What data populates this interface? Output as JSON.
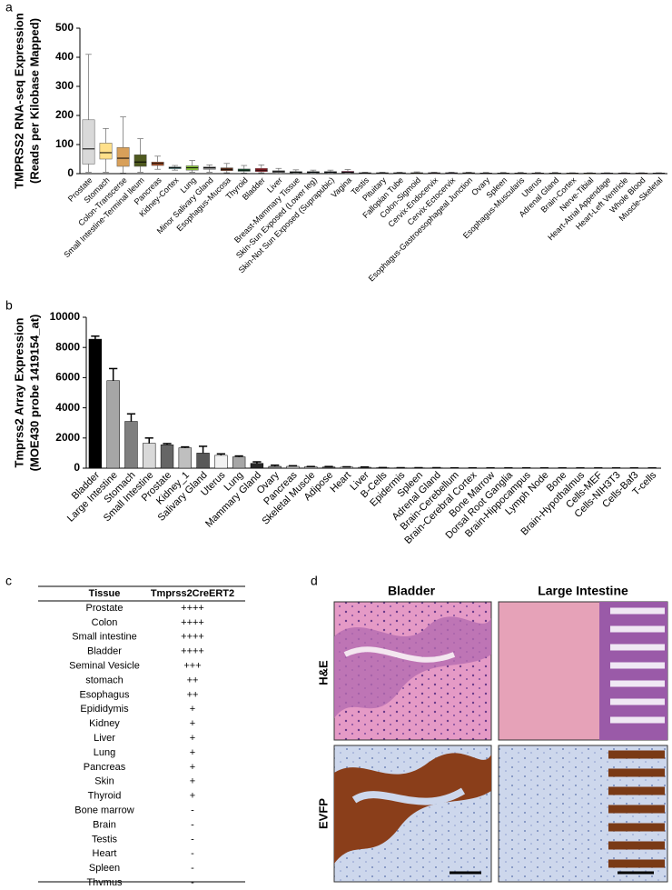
{
  "panels": [
    "a",
    "b",
    "c",
    "d"
  ],
  "chart_data": [
    {
      "type": "box",
      "y_label": [
        "TMPRSS2 RNA-seq Expression",
        "(Reads per Kilobase Mapped)"
      ],
      "categories": [
        "Prostate",
        "Stomach",
        "Colon-Transcerse",
        "Small Intestine-Terminal Ileum",
        "Pancreas",
        "Kidney-Cortex",
        "Lung",
        "Minor Salivary Gland",
        "Esophagus-Mucosa",
        "Thyroid",
        "Bladder",
        "Liver",
        "Breast-Mammary Tissue",
        "Skin-Sun Exposed (Lower leg)",
        "Skin-Not Sun Exposed (Suprapubic)",
        "Vagina",
        "Testis",
        "Pituitary",
        "Fallopian Tube",
        "Colon-Sigmoid",
        "Cervix-Endocervix",
        "Cervix-Ectocervix",
        "Esophagus-Gastroesophageal Junction",
        "Ovary",
        "Spleen",
        "Esophagus-Muscularis",
        "Uterus",
        "Adrenal Gland",
        "Brain-Cortex",
        "Nerve-Tibial",
        "Heart-Atrial Appendage",
        "Heart-Left Ventricle",
        "Whole Blood",
        "Muscle-Skeletal"
      ],
      "whislo": [
        5,
        5,
        2,
        5,
        15,
        12,
        5,
        5,
        3,
        2,
        3,
        1,
        1,
        1,
        1,
        1,
        0,
        0,
        0,
        0,
        0,
        0,
        0,
        0,
        0,
        0,
        0,
        0,
        0,
        0,
        0,
        0,
        0,
        0
      ],
      "q1": [
        33,
        50,
        25,
        25,
        28,
        17,
        12,
        15,
        10,
        8,
        7,
        4,
        3,
        3,
        3,
        3,
        1,
        1,
        1,
        1,
        1,
        1,
        1,
        1,
        0,
        0,
        0,
        0,
        0,
        0,
        0,
        0,
        0,
        0
      ],
      "median": [
        85,
        72,
        53,
        40,
        35,
        20,
        20,
        20,
        15,
        12,
        12,
        7,
        5,
        5,
        5,
        5,
        2,
        2,
        2,
        2,
        2,
        2,
        2,
        1,
        1,
        1,
        1,
        1,
        1,
        1,
        1,
        1,
        1,
        1
      ],
      "q3": [
        185,
        105,
        90,
        65,
        40,
        23,
        27,
        23,
        20,
        16,
        18,
        10,
        7,
        7,
        7,
        8,
        3,
        3,
        3,
        3,
        3,
        3,
        3,
        2,
        2,
        2,
        2,
        2,
        2,
        2,
        2,
        2,
        2,
        2
      ],
      "whishi": [
        410,
        155,
        195,
        120,
        60,
        28,
        45,
        30,
        35,
        28,
        30,
        18,
        13,
        12,
        12,
        14,
        5,
        5,
        5,
        6,
        5,
        5,
        5,
        4,
        4,
        4,
        4,
        4,
        3,
        3,
        3,
        3,
        3,
        3
      ],
      "colors": [
        "#d9d9d9",
        "#ffe08a",
        "#d8a05a",
        "#4f5a1f",
        "#b5552a",
        "#4bb3b3",
        "#8cc63f",
        "#9b9b9b",
        "#7a3b1f",
        "#1b6b3a",
        "#b0202a",
        "#888888",
        "#4aa88a",
        "#1a8aaa",
        "#3366aa",
        "#e04a8a",
        "#aaaaaa",
        "#bbbbbb",
        "#999999",
        "#c0a060",
        "#cc88aa",
        "#bb88cc",
        "#998877",
        "#cc99bb",
        "#88aa88",
        "#aa8866",
        "#dd99aa",
        "#99aa66",
        "#eecc55",
        "#ddcc33",
        "#8866aa",
        "#aa66aa",
        "#cc6666",
        "#9999cc"
      ],
      "ylim": [
        0,
        500
      ],
      "yticks": [
        0,
        100,
        200,
        300,
        400,
        500
      ]
    },
    {
      "type": "bar",
      "y_label": [
        "Tmprss2 Array Expression",
        "(MOE430 probe 1419154_at)"
      ],
      "categories": [
        "Bladder",
        "Large Intestine",
        "Stomach",
        "Small Intestine",
        "Prostate",
        "Kidney_1",
        "Salivary Gland",
        "Uterus",
        "Lung",
        "Mammary Gland",
        "Ovary",
        "Pancreas",
        "Skeletal Muscle",
        "Adipose",
        "Heart",
        "Liver",
        "B-Cells",
        "Epidermis",
        "Spleen",
        "Adrenal Gland",
        "Brain-Cerebellum",
        "Brain-Cerebral Cortex",
        "Bone Marrow",
        "Dorsal Root Ganglia",
        "Brain-Hippocampus",
        "Lymph Node",
        "Bone",
        "Brain-Hypothalmus",
        "Cells-MEF",
        "Cells-NIH3T3",
        "Cells-Baf3",
        "T-cells"
      ],
      "values": [
        8550,
        5800,
        3100,
        1650,
        1550,
        1350,
        1000,
        850,
        750,
        320,
        120,
        120,
        90,
        80,
        70,
        60,
        30,
        20,
        20,
        20,
        15,
        15,
        15,
        15,
        15,
        10,
        10,
        10,
        10,
        10,
        10,
        10
      ],
      "errors": [
        200,
        800,
        500,
        350,
        80,
        60,
        450,
        100,
        60,
        100,
        80,
        40,
        20,
        30,
        20,
        20,
        10,
        10,
        10,
        10,
        5,
        5,
        5,
        5,
        5,
        5,
        5,
        5,
        5,
        5,
        5,
        5
      ],
      "colors": [
        "#000000",
        "#a6a6a6",
        "#7f7f7f",
        "#d9d9d9",
        "#666666",
        "#bfbfbf",
        "#595959",
        "#f2f2f2",
        "#a6a6a6",
        "#262626",
        "#8c8c8c",
        "#d0d0d0",
        "#bfbfbf",
        "#595959",
        "#e6e6e6",
        "#7f7f7f",
        "#333333",
        "#cccccc",
        "#999999",
        "#666666",
        "#e0e0e0",
        "#777777",
        "#444444",
        "#bbbbbb",
        "#888888",
        "#dddddd",
        "#555555",
        "#aaaaaa",
        "#eeeeee",
        "#999999",
        "#333333",
        "#cccccc"
      ],
      "ylim": [
        0,
        10000
      ],
      "yticks": [
        0,
        2000,
        4000,
        6000,
        8000,
        10000
      ]
    }
  ],
  "table": {
    "header": [
      "Tissue",
      "Tmprss2CreERT2"
    ],
    "rows": [
      [
        "Prostate",
        "++++"
      ],
      [
        "Colon",
        "++++"
      ],
      [
        "Small intestine",
        "++++"
      ],
      [
        "Bladder",
        "++++"
      ],
      [
        "Seminal Vesicle",
        "+++"
      ],
      [
        "stomach",
        "++"
      ],
      [
        "Esophagus",
        "++"
      ],
      [
        "Epididymis",
        "+"
      ],
      [
        "Kidney",
        "+"
      ],
      [
        "Liver",
        "+"
      ],
      [
        "Lung",
        "+"
      ],
      [
        "Pancreas",
        "+"
      ],
      [
        "Skin",
        "+"
      ],
      [
        "Thyroid",
        "+"
      ],
      [
        "Bone marrow",
        "-"
      ],
      [
        "Brain",
        "-"
      ],
      [
        "Testis",
        "-"
      ],
      [
        "Heart",
        "-"
      ],
      [
        "Spleen",
        "-"
      ],
      [
        "Thymus",
        "-"
      ]
    ]
  },
  "images": {
    "columns": [
      "Bladder",
      "Large Intestine"
    ],
    "rows": [
      "H&E",
      "EVFP"
    ]
  }
}
